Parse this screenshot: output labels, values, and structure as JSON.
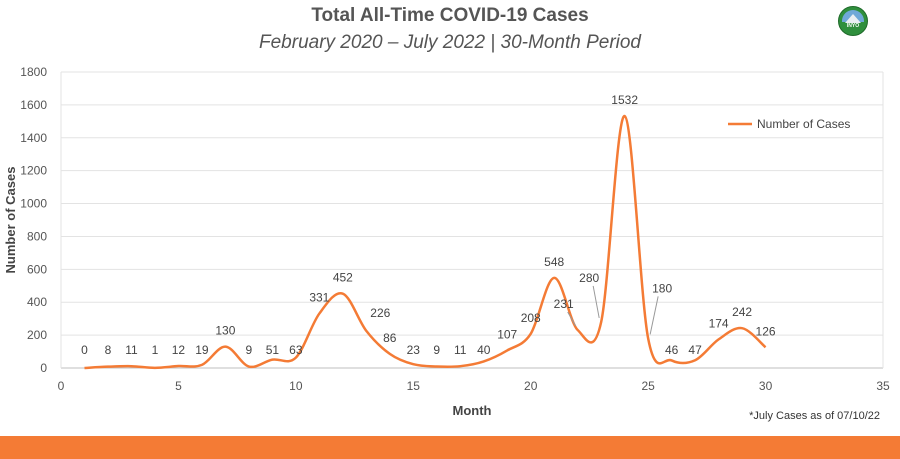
{
  "chart_data": {
    "type": "line",
    "title": "Total All-Time COVID-19 Cases",
    "subtitle": "February 2020 – July 2022 | 30-Month Period",
    "xlabel": "Month",
    "ylabel": "Number of Cases",
    "xlim": [
      0,
      35
    ],
    "ylim": [
      0,
      1800
    ],
    "xticks": [
      0,
      5,
      10,
      15,
      20,
      25,
      30,
      35
    ],
    "yticks": [
      0,
      200,
      400,
      600,
      800,
      1000,
      1200,
      1400,
      1600,
      1800
    ],
    "grid": true,
    "legend": "top-right",
    "series": [
      {
        "name": "Number of Cases",
        "color": "#f47b35",
        "x": [
          1,
          2,
          3,
          4,
          5,
          6,
          7,
          8,
          9,
          10,
          11,
          12,
          13,
          14,
          15,
          16,
          17,
          18,
          19,
          20,
          21,
          22,
          23,
          24,
          25,
          26,
          27,
          28,
          29,
          30
        ],
        "values": [
          0,
          8,
          11,
          1,
          12,
          19,
          130,
          9,
          51,
          63,
          331,
          452,
          226,
          86,
          23,
          9,
          11,
          40,
          107,
          208,
          548,
          231,
          280,
          1532,
          180,
          46,
          47,
          174,
          242,
          126
        ]
      }
    ]
  },
  "footnote": "*July Cases as of 07/10/22",
  "logo": {
    "text": "INYO"
  }
}
